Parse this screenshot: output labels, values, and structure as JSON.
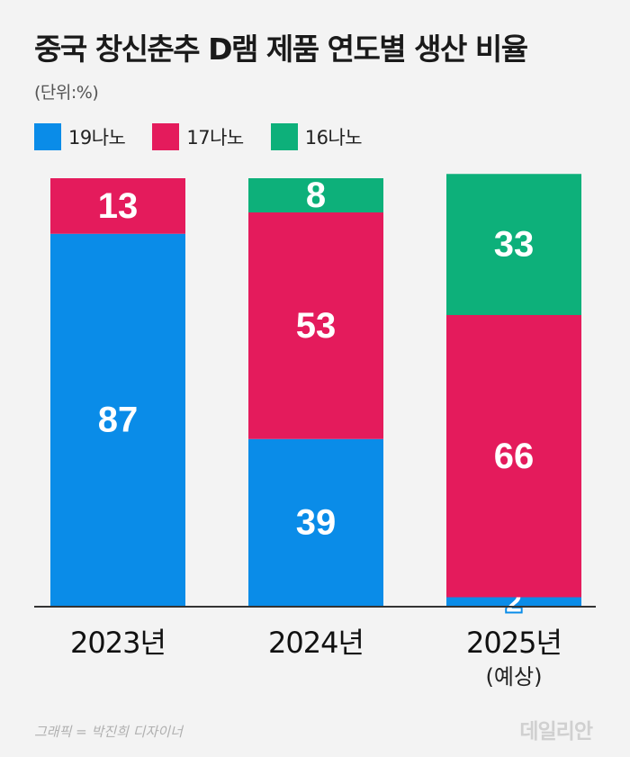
{
  "header": {
    "title": "중국 창신춘추 D램 제품 연도별 생산 비율",
    "unit": "(단위:%)"
  },
  "legend": [
    {
      "label": "19나노",
      "color": "#0a8ce8"
    },
    {
      "label": "17나노",
      "color": "#e41b5c"
    },
    {
      "label": "16나노",
      "color": "#0db07a"
    }
  ],
  "chart_data": {
    "type": "bar",
    "stacked": true,
    "categories": [
      "2023년",
      "2024년",
      "2025년"
    ],
    "category_notes": [
      "",
      "",
      "(예상)"
    ],
    "series": [
      {
        "name": "19나노",
        "color": "#0a8ce8",
        "values": [
          87,
          39,
          2
        ]
      },
      {
        "name": "17나노",
        "color": "#e41b5c",
        "values": [
          13,
          53,
          66
        ]
      },
      {
        "name": "16나노",
        "color": "#0db07a",
        "values": [
          0,
          8,
          33
        ]
      }
    ],
    "ylim": [
      0,
      100
    ],
    "grid": false,
    "legend_position": "top-left"
  },
  "footer": {
    "credit": "그래픽 = 박진희 디자이너",
    "logo": "데일리안"
  }
}
